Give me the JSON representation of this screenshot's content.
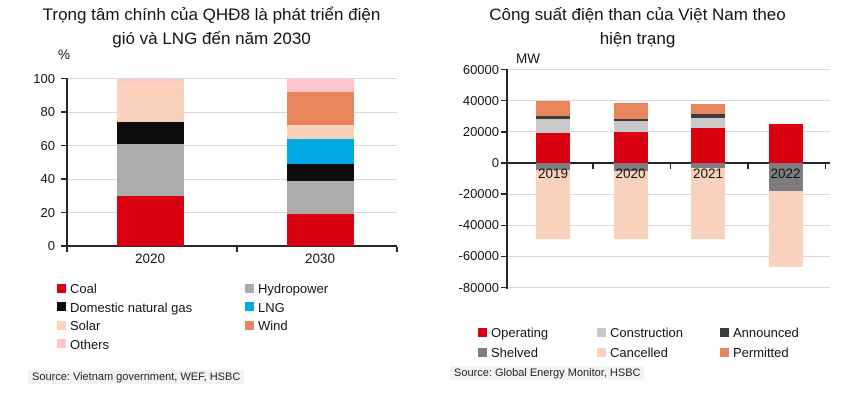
{
  "charts": [
    {
      "title_lines": [
        "Trọng tâm chính của QHĐ8 là phát triển điện",
        "gió và LNG đến năm 2030"
      ],
      "unit": "%",
      "source": "Source: Vietnam government, WEF, HSBC"
    },
    {
      "title_lines": [
        "Công suất điện than của Việt Nam theo",
        "hiện trạng"
      ],
      "unit": "MW",
      "source": "Source: Global Energy Monitor, HSBC"
    }
  ],
  "chart_data": [
    {
      "type": "bar",
      "stacked": true,
      "title": "Trọng tâm chính của QHĐ8 là phát triển điện gió và LNG đến năm 2030",
      "xlabel": "",
      "ylabel": "%",
      "ylim": [
        0,
        100
      ],
      "ytick_step": 20,
      "grid": true,
      "legend_position": "bottom",
      "categories": [
        "2020",
        "2030"
      ],
      "series": [
        {
          "name": "Coal",
          "color": "#DB0011",
          "values": [
            30,
            19
          ]
        },
        {
          "name": "Hydropower",
          "color": "#ACACAC",
          "values": [
            31,
            20
          ]
        },
        {
          "name": "Domestic natural gas",
          "color": "#0D0D0D",
          "values": [
            13,
            10
          ]
        },
        {
          "name": "LNG",
          "color": "#00A8E4",
          "values": [
            0,
            15
          ]
        },
        {
          "name": "Solar",
          "color": "#F9D1BC",
          "values": [
            24,
            8
          ]
        },
        {
          "name": "Wind",
          "color": "#E9855C",
          "values": [
            0,
            20
          ]
        },
        {
          "name": "Others",
          "color": "#FFC4CC",
          "values": [
            2,
            8
          ]
        }
      ],
      "legend_rows": [
        [
          "Coal",
          "Hydropower"
        ],
        [
          "Domestic natural gas",
          "LNG"
        ],
        [
          "Solar",
          "Wind"
        ],
        [
          "Others"
        ]
      ]
    },
    {
      "type": "bar",
      "stacked": true,
      "title": "Công suất điện than của Việt Nam theo hiện trạng",
      "xlabel": "",
      "ylabel": "MW",
      "ylim": [
        -80000,
        60000
      ],
      "ytick_step": 20000,
      "grid": true,
      "legend_position": "bottom",
      "categories": [
        "2019",
        "2020",
        "2021",
        "2022"
      ],
      "series": [
        {
          "name": "Operating",
          "color": "#DB0011",
          "values": [
            19500,
            20000,
            22500,
            25000
          ]
        },
        {
          "name": "Construction",
          "color": "#C9C9C9",
          "values": [
            8500,
            7000,
            6500,
            0
          ]
        },
        {
          "name": "Announced",
          "color": "#3C3C3C",
          "values": [
            2000,
            1500,
            2500,
            0
          ]
        },
        {
          "name": "Shelved",
          "color": "#7D7D7D",
          "values": [
            -4500,
            -5000,
            -3500,
            -18000
          ]
        },
        {
          "name": "Cancelled",
          "color": "#F9D1BC",
          "values": [
            -44000,
            -44000,
            -45500,
            -49000
          ]
        },
        {
          "name": "Permitted",
          "color": "#E9855C",
          "values": [
            10000,
            10000,
            6500,
            0
          ]
        }
      ],
      "legend_rows": [
        [
          "Operating",
          "Construction",
          "Announced"
        ],
        [
          "Shelved",
          "Cancelled",
          "Permitted"
        ]
      ]
    }
  ],
  "colors": {
    "accent_red": "#DB0011",
    "gridline": "#D9D9D9",
    "axis": "#262626",
    "source_background": "#F2F2F2"
  }
}
